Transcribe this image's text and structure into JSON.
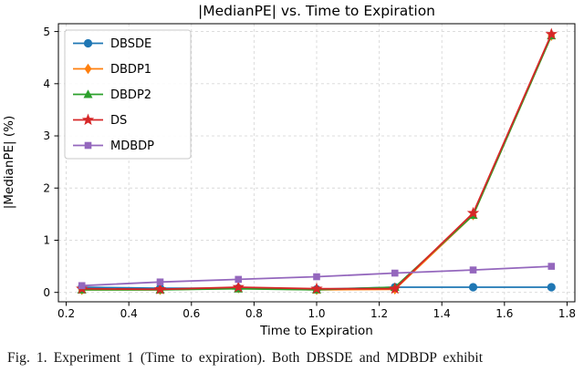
{
  "figure": {
    "caption": "Fig. 1.  Experiment 1 (Time to expiration). Both DBSDE and MDBDP exhibit"
  },
  "chart_data": {
    "type": "line",
    "title": "|MedianPE| vs. Time to Expiration",
    "xlabel": "Time to Expiration",
    "ylabel": "|MedianPE| (%)",
    "xlim": [
      0.175,
      1.825
    ],
    "ylim": [
      -0.18,
      5.15
    ],
    "xticks": [
      0.2,
      0.4,
      0.6,
      0.8,
      1.0,
      1.2,
      1.4,
      1.6,
      1.8
    ],
    "xtick_labels": [
      "0.2",
      "0.4",
      "0.6",
      "0.8",
      "1.0",
      "1.2",
      "1.4",
      "1.6",
      "1.8"
    ],
    "yticks": [
      0,
      1,
      2,
      3,
      4,
      5
    ],
    "ytick_labels": [
      "0",
      "1",
      "2",
      "3",
      "4",
      "5"
    ],
    "grid": true,
    "legend_position": "upper left",
    "x": [
      0.25,
      0.5,
      0.75,
      1.0,
      1.25,
      1.5,
      1.75
    ],
    "series": [
      {
        "name": "DBSDE",
        "color": "#1f77b4",
        "marker": "circle",
        "values": [
          0.1,
          0.08,
          0.08,
          0.06,
          0.1,
          0.1,
          0.1
        ]
      },
      {
        "name": "DBDP1",
        "color": "#ff7f0e",
        "marker": "diamond",
        "values": [
          0.05,
          0.05,
          0.08,
          0.05,
          0.06,
          1.48,
          4.92
        ]
      },
      {
        "name": "DBDP2",
        "color": "#2ca02c",
        "marker": "triangle",
        "values": [
          0.05,
          0.05,
          0.07,
          0.05,
          0.1,
          1.48,
          4.92
        ]
      },
      {
        "name": "DS",
        "color": "#d62728",
        "marker": "star",
        "values": [
          0.07,
          0.06,
          0.1,
          0.07,
          0.07,
          1.52,
          4.95
        ]
      },
      {
        "name": "MDBDP",
        "color": "#9467bd",
        "marker": "square",
        "values": [
          0.13,
          0.2,
          0.25,
          0.3,
          0.37,
          0.43,
          0.5
        ]
      }
    ]
  }
}
